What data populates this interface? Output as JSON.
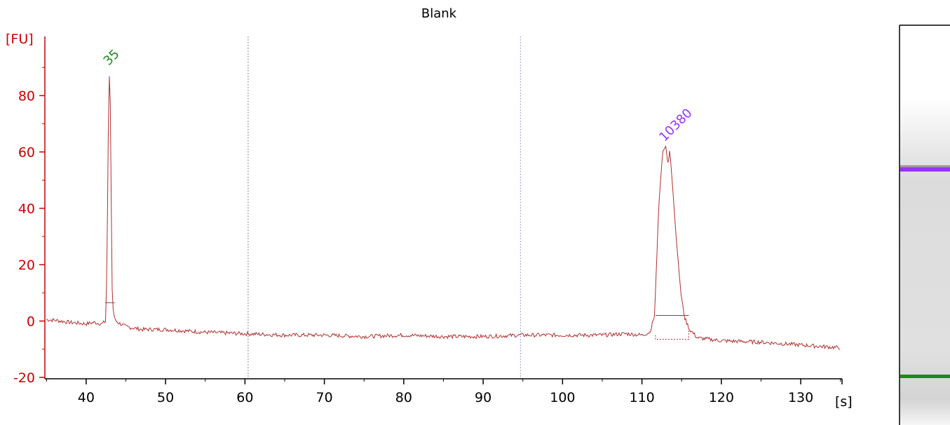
{
  "chart_data": {
    "type": "line",
    "title": "Blank",
    "xlabel": "[s]",
    "ylabel": "[FU]",
    "xlim": [
      34.8,
      135.2
    ],
    "ylim": [
      -20.5,
      101
    ],
    "xticks": [
      40,
      50,
      60,
      70,
      80,
      90,
      100,
      110,
      120,
      130
    ],
    "yticks": [
      -20,
      0,
      20,
      40,
      60,
      80
    ],
    "grid": false,
    "colors": {
      "trace": "#b03030",
      "axis_y": "#cc0000",
      "marker_low": "#1a8a1a",
      "marker_high": "#9933ff"
    },
    "series": [
      {
        "x": [
          35,
          36,
          38,
          40,
          41,
          42,
          42.5,
          42.7,
          42.85,
          43.0,
          43.15,
          43.3,
          43.6,
          44,
          45,
          47,
          50,
          55,
          60,
          65,
          70,
          75,
          80,
          85,
          90,
          95,
          100,
          105,
          108,
          110,
          111,
          111.6,
          112.1,
          112.6,
          113.0,
          113.3,
          113.5,
          113.8,
          114.3,
          114.9,
          115.4,
          116,
          117,
          120,
          125,
          130,
          135
        ],
        "y": [
          0.5,
          0.3,
          -0.5,
          -1,
          -0.5,
          -1,
          0,
          40,
          85,
          89,
          45,
          6,
          0.5,
          -0.5,
          -2,
          -3,
          -3,
          -4,
          -4.5,
          -5,
          -5,
          -5.5,
          -5,
          -5.5,
          -5.5,
          -5,
          -5,
          -5,
          -4.5,
          -5,
          -4,
          2,
          40,
          60,
          62,
          55,
          61,
          50,
          30,
          10,
          1,
          -3,
          -6,
          -7,
          -7.5,
          -8.5,
          -9.5
        ]
      }
    ],
    "peaks": [
      {
        "label": "35",
        "x": 43.0,
        "y": 89,
        "color": "#1a8a1a"
      },
      {
        "label": "10380",
        "x": 113.0,
        "y": 62,
        "color": "#9933ff"
      }
    ],
    "integration_ranges": [
      {
        "x_start": 42.4,
        "x_end": 43.6,
        "baseline": 6.5
      },
      {
        "x_start": 111.7,
        "x_end": 115.9,
        "baseline": 2
      }
    ],
    "vertical_markers": [
      {
        "x": 60.4,
        "color": "#888888"
      },
      {
        "x": 94.7,
        "color": "#9999dd"
      }
    ]
  },
  "gel": {
    "bands": [
      {
        "name": "upper marker",
        "color": "#9933ff"
      },
      {
        "name": "lower marker",
        "color": "#1a8a1a"
      }
    ]
  }
}
